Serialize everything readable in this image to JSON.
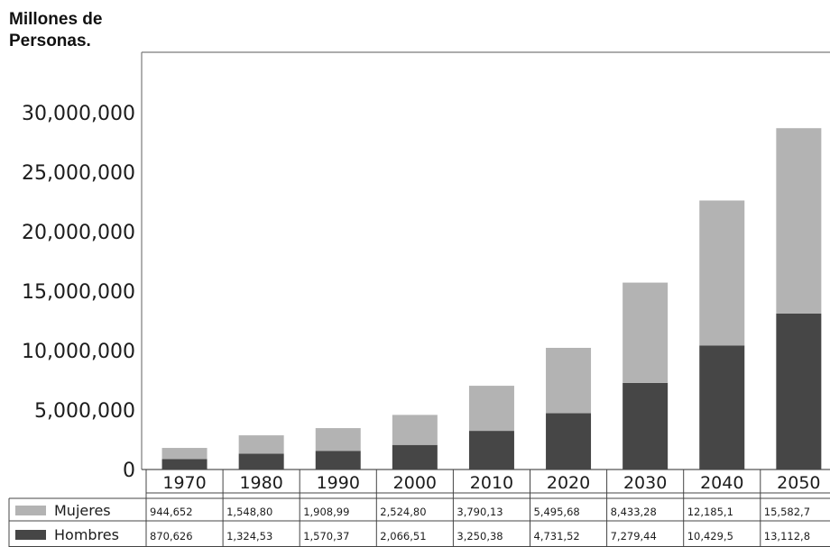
{
  "chart_data": {
    "type": "bar",
    "stacked": true,
    "ylabel": "Millones de Personas.",
    "ylim": [
      0,
      30000000
    ],
    "yticks": [
      "0",
      "5,000,000",
      "10,000,000",
      "15,000,000",
      "20,000,000",
      "25,000,000",
      "30,000,000"
    ],
    "ytick_values": [
      0,
      5000000,
      10000000,
      15000000,
      20000000,
      25000000,
      30000000
    ],
    "categories": [
      "1970",
      "1980",
      "1990",
      "2000",
      "2010",
      "2020",
      "2030",
      "2040",
      "2050"
    ],
    "series": [
      {
        "name": "Hombres",
        "color": "#464646",
        "values": [
          870626,
          1324530,
          1570370,
          2066510,
          3250380,
          4731520,
          7279440,
          10429500,
          13112800
        ],
        "labels": [
          "870,626",
          "1,324,53",
          "1,570,37",
          "2,066,51",
          "3,250,38",
          "4,731,52",
          "7,279,44",
          "10,429,5",
          "13,112,8"
        ]
      },
      {
        "name": "Mujeres",
        "color": "#b3b3b3",
        "values": [
          944652,
          1548800,
          1908990,
          2524800,
          3790130,
          5495680,
          8433280,
          12185100,
          15582700
        ],
        "labels": [
          "944,652",
          "1,548,80",
          "1,908,99",
          "2,524,80",
          "3,790,13",
          "5,495,68",
          "8,433,28",
          "12,185,1",
          "15,582,7"
        ]
      }
    ],
    "legend": "table-below",
    "grid": false
  }
}
